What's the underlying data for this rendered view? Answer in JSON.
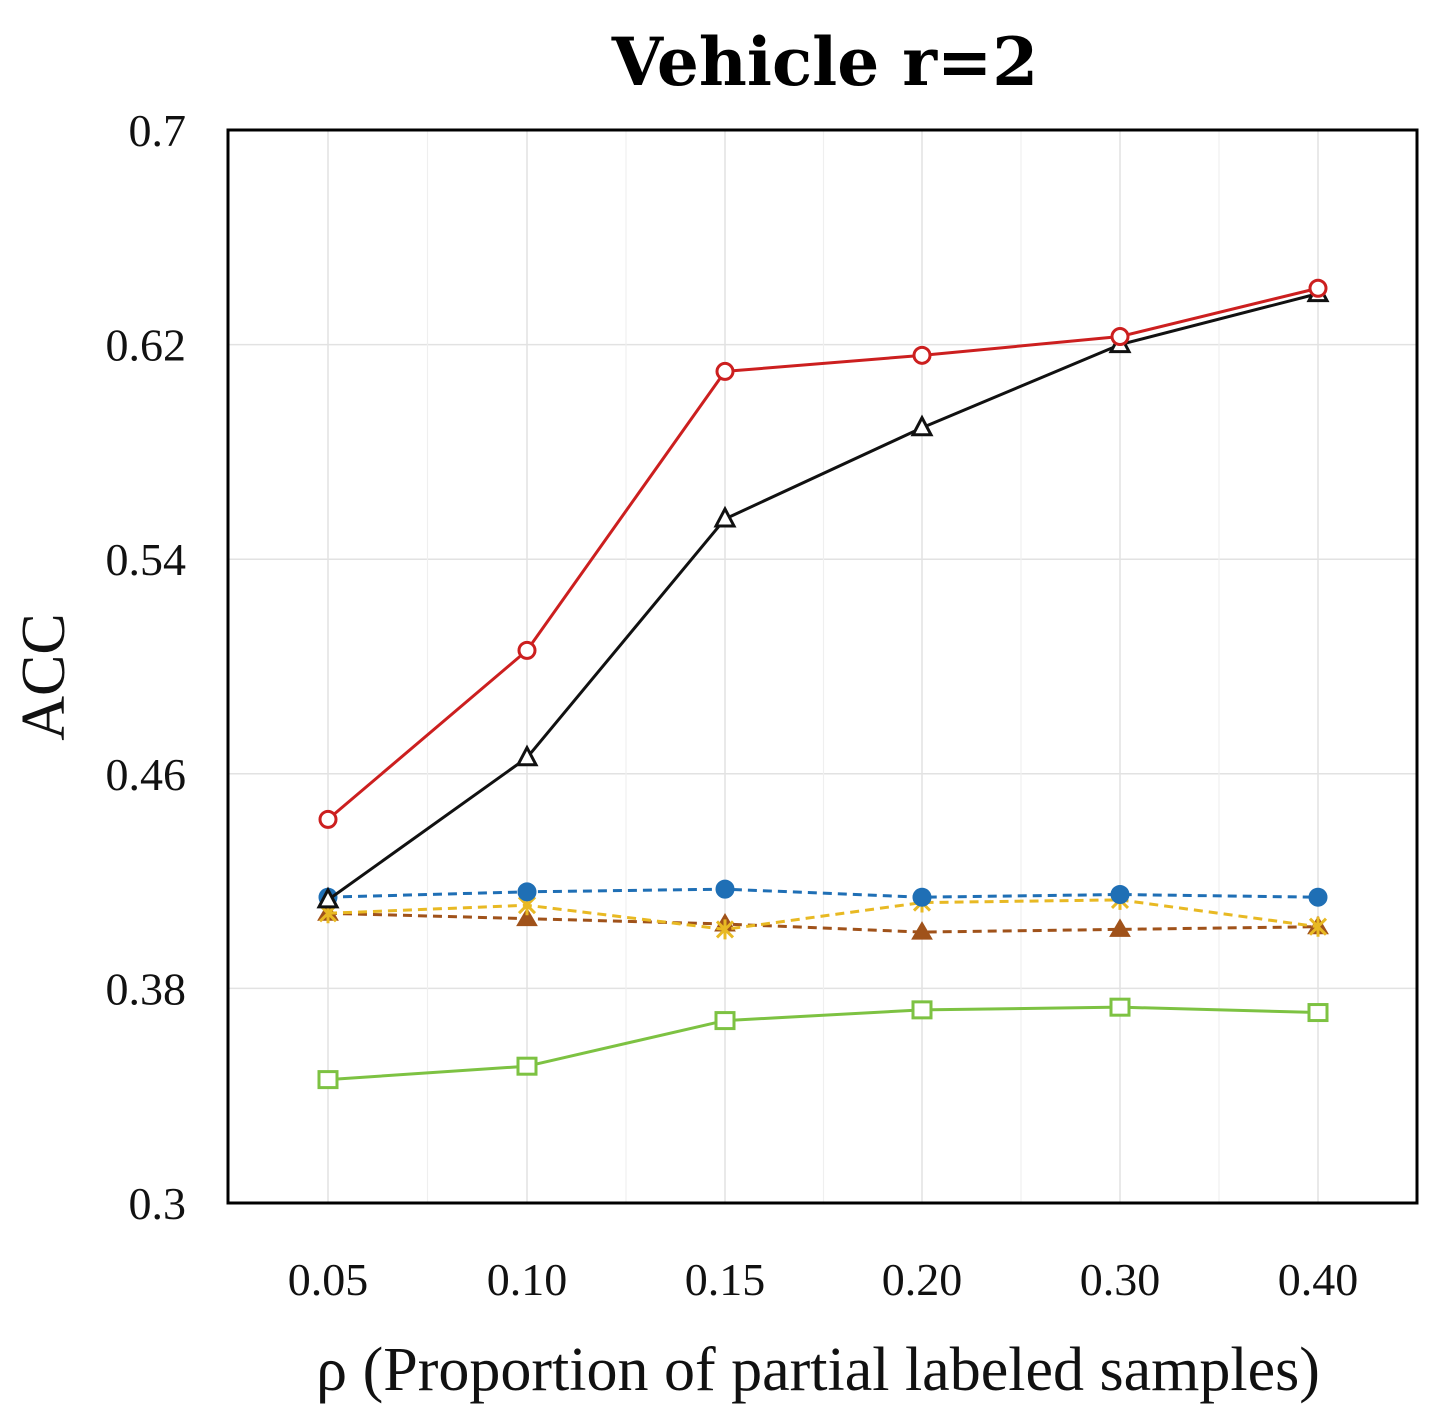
{
  "chart_data": {
    "type": "line",
    "title": "Vehicle r=2",
    "xlabel": "ρ (Proportion of partial labeled samples)",
    "ylabel": "ACC",
    "categories": [
      "0.05",
      "0.10",
      "0.15",
      "0.20",
      "0.30",
      "0.40"
    ],
    "ylim": [
      0.3,
      0.7
    ],
    "yticks": [
      "0.3",
      "0.38",
      "0.46",
      "0.54",
      "0.62",
      "0.7"
    ],
    "grid": true,
    "series": [
      {
        "name": "red-circle",
        "color": "#cc1f1f",
        "style": "solid",
        "marker": "open-circle",
        "values": [
          0.443,
          0.506,
          0.61,
          0.616,
          0.623,
          0.641
        ]
      },
      {
        "name": "black-triangle",
        "color": "#111111",
        "style": "solid",
        "marker": "open-triangle",
        "values": [
          0.413,
          0.466,
          0.555,
          0.589,
          0.62,
          0.639
        ]
      },
      {
        "name": "blue-dot",
        "color": "#1f6fb5",
        "style": "dashed",
        "marker": "filled-circle",
        "values": [
          0.414,
          0.416,
          0.417,
          0.414,
          0.415,
          0.414
        ]
      },
      {
        "name": "yellow-star",
        "color": "#e8b923",
        "style": "dashed",
        "marker": "star",
        "values": [
          0.408,
          0.411,
          0.402,
          0.412,
          0.413,
          0.403
        ]
      },
      {
        "name": "brown-triangle",
        "color": "#a0521a",
        "style": "dashed",
        "marker": "filled-triangle",
        "values": [
          0.408,
          0.406,
          0.404,
          0.401,
          0.402,
          0.403
        ]
      },
      {
        "name": "green-square",
        "color": "#7dc242",
        "style": "solid",
        "marker": "open-square",
        "values": [
          0.346,
          0.351,
          0.368,
          0.372,
          0.373,
          0.371
        ]
      }
    ]
  }
}
